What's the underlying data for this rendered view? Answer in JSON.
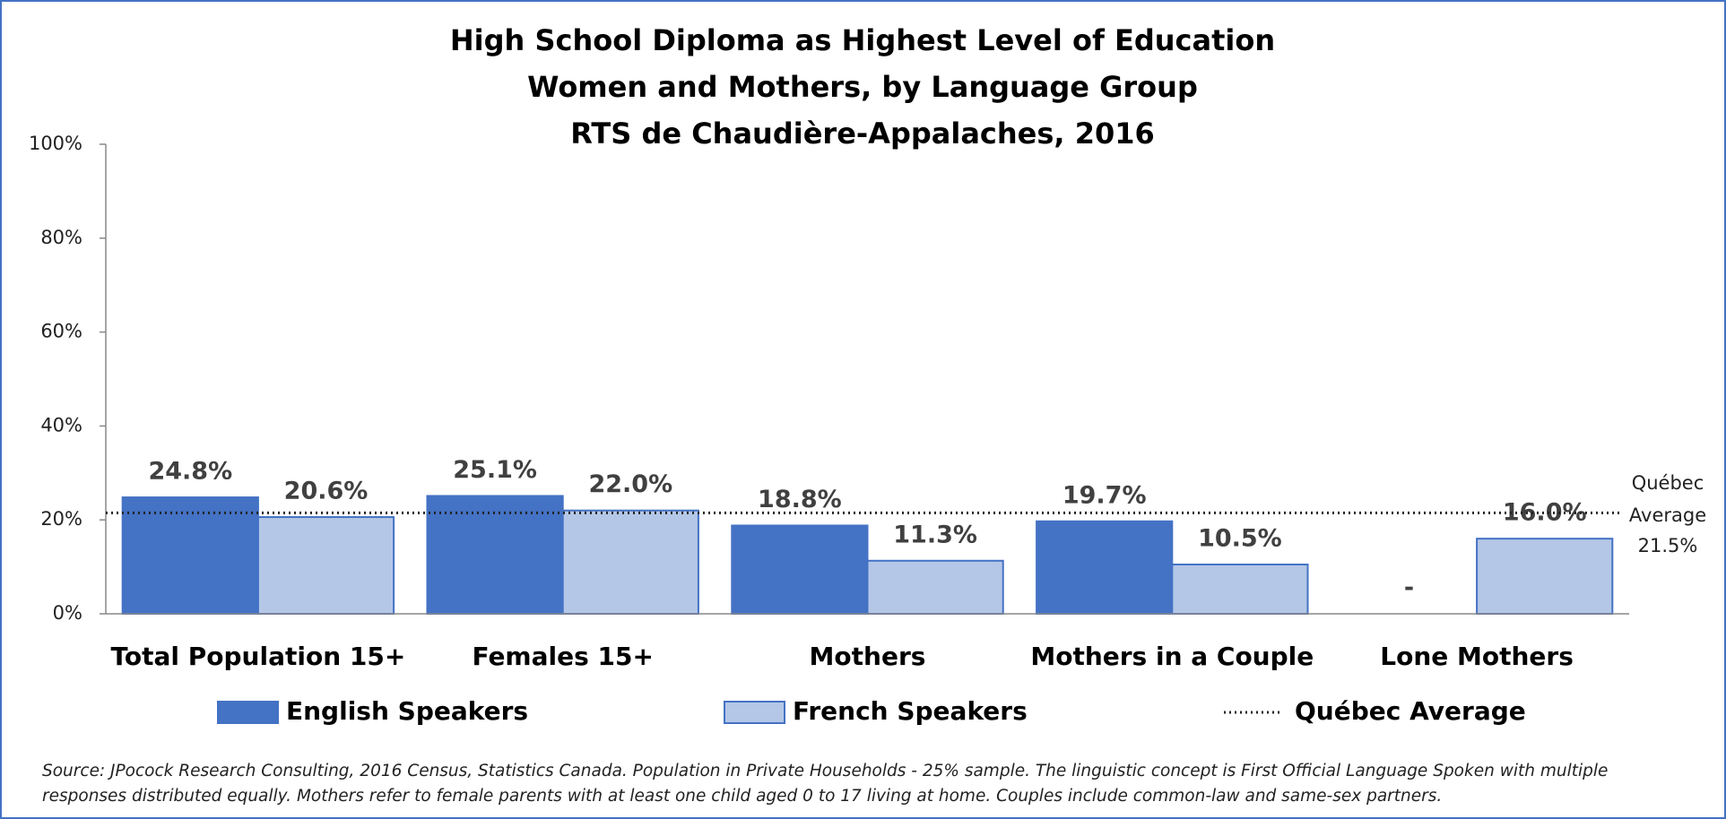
{
  "chart_data": {
    "type": "bar",
    "title": [
      "High School Diploma as Highest Level of Education",
      "Women and Mothers, by Language Group",
      "RTS de Chaudière-Appalaches, 2016"
    ],
    "categories": [
      "Total Population 15+",
      "Females 15+",
      "Mothers",
      "Mothers in a Couple",
      "Lone Mothers"
    ],
    "series": [
      {
        "name": "English Speakers",
        "color": "#4472c4",
        "values": [
          24.8,
          25.1,
          18.8,
          19.7,
          null
        ],
        "value_labels": [
          "24.8%",
          "25.1%",
          "18.8%",
          "19.7%",
          "-"
        ]
      },
      {
        "name": "French Speakers",
        "color": "#b4c7e7",
        "values": [
          20.6,
          22.0,
          11.3,
          10.5,
          16.0
        ],
        "value_labels": [
          "20.6%",
          "22.0%",
          "11.3%",
          "10.5%",
          "16.0%"
        ]
      }
    ],
    "reference_line": {
      "name": "Québec Average",
      "value": 21.5,
      "label": [
        "Québec",
        "Average"
      ],
      "value_label": "21.5%"
    },
    "ylim": [
      0,
      100
    ],
    "yticks": [
      {
        "value": 0,
        "label": "0%"
      },
      {
        "value": 20,
        "label": "20%"
      },
      {
        "value": 40,
        "label": "40%"
      },
      {
        "value": 60,
        "label": "60%"
      },
      {
        "value": 80,
        "label": "80%"
      },
      {
        "value": 100,
        "label": "100%"
      }
    ],
    "grid": false,
    "legend": "bottom",
    "source": [
      "Source: JPocock Research Consulting, 2016 Census, Statistics Canada. Population in Private Households - 25% sample. The linguistic concept is First Official Language Spoken with multiple",
      "responses distributed equally. Mothers refer to female parents with at least one child aged 0 to 17 living at home. Couples include common-law and same-sex partners."
    ]
  }
}
